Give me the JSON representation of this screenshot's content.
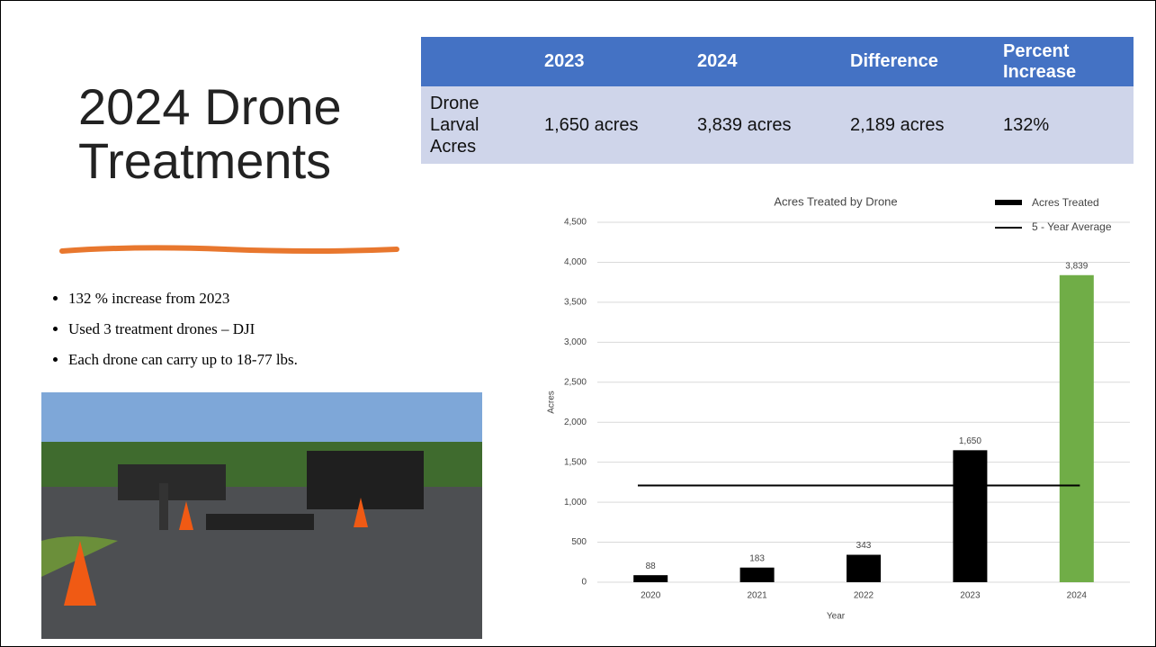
{
  "title": "2024 Drone Treatments",
  "table": {
    "columns": [
      "2023",
      "2024",
      "Difference",
      "Percent Increase"
    ],
    "rows": [
      [
        "Drone Larval Acres",
        "1,650 acres",
        "3,839 acres",
        "2,189 acres",
        "132%"
      ]
    ]
  },
  "bullets": [
    "132 % increase from 2023",
    "Used 3 treatment drones – DJI",
    "Each drone can carry up to 18-77 lbs."
  ],
  "chart_data": {
    "type": "bar",
    "title": "Acres Treated by Drone",
    "x_label": "Year",
    "y_label": "Acres",
    "categories": [
      "2020",
      "2021",
      "2022",
      "2023",
      "2024"
    ],
    "series": [
      {
        "name": "Acres Treated",
        "color": "#000000",
        "colors": [
          "#000000",
          "#000000",
          "#000000",
          "#000000",
          "#70ad47"
        ],
        "values": [
          88,
          183,
          343,
          1650,
          3839
        ],
        "value_labels": [
          "88",
          "183",
          "343",
          "1,650",
          "3,839"
        ]
      }
    ],
    "reference_line": {
      "name": "5 - Year Average",
      "value": 1210,
      "color": "#000000"
    },
    "ylim": [
      0,
      4500
    ],
    "yticks": [
      0,
      500,
      {
        "value": 1000,
        "label": "1,000"
      },
      {
        "value": 1500,
        "label": "1,500"
      },
      {
        "value": 2000,
        "label": "2,000"
      },
      {
        "value": 2500,
        "label": "2,500"
      },
      {
        "value": 3000,
        "label": "3,000"
      },
      {
        "value": 3500,
        "label": "3,500"
      },
      {
        "value": 4000,
        "label": "4,000"
      },
      {
        "value": 4500,
        "label": "4,500"
      }
    ],
    "grid": true,
    "legend": "top-right"
  }
}
